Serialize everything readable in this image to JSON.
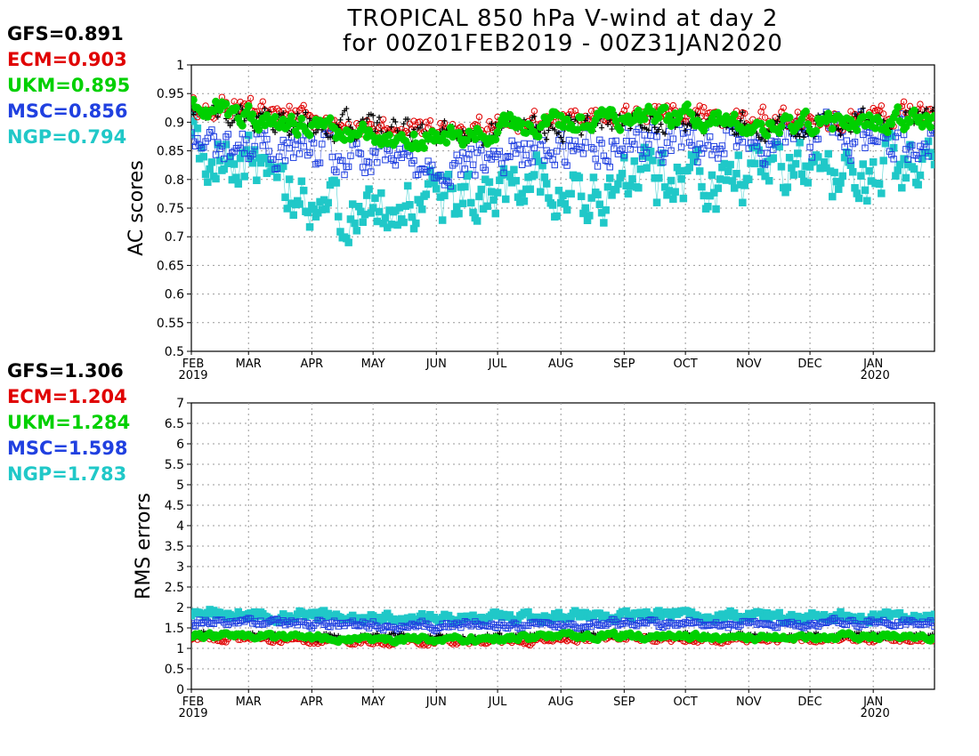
{
  "title": {
    "line1": "TROPICAL 850 hPa V-wind at day 2",
    "line2": "for 00Z01FEB2019 - 00Z31JAN2020"
  },
  "colors": {
    "GFS": "#000000",
    "ECM": "#e00000",
    "UKM": "#00d000",
    "MSC": "#2040e0",
    "NGP": "#20c8c8"
  },
  "ac_stats": [
    {
      "model": "GFS",
      "text": "GFS=0.891"
    },
    {
      "model": "ECM",
      "text": "ECM=0.903"
    },
    {
      "model": "UKM",
      "text": "UKM=0.895"
    },
    {
      "model": "MSC",
      "text": "MSC=0.856"
    },
    {
      "model": "NGP",
      "text": "NGP=0.794"
    }
  ],
  "rms_stats": [
    {
      "model": "GFS",
      "text": "GFS=1.306"
    },
    {
      "model": "ECM",
      "text": "ECM=1.204"
    },
    {
      "model": "UKM",
      "text": "UKM=1.284"
    },
    {
      "model": "MSC",
      "text": "MSC=1.598"
    },
    {
      "model": "NGP",
      "text": "NGP=1.783"
    }
  ],
  "chart_data": [
    {
      "type": "scatter",
      "ylabel": "AC scores",
      "ylim": [
        0.5,
        1.0
      ],
      "yticks": [
        "0.5",
        "0.55",
        "0.6",
        "0.65",
        "0.7",
        "0.75",
        "0.8",
        "0.85",
        "0.9",
        "0.95",
        "1"
      ],
      "xlim": [
        "2019-02-01",
        "2020-01-31"
      ],
      "xticks": [
        {
          "date": "2019-02-01",
          "label": "FEB",
          "sub": "2019"
        },
        {
          "date": "2019-03-01",
          "label": "MAR",
          "sub": ""
        },
        {
          "date": "2019-04-01",
          "label": "APR",
          "sub": ""
        },
        {
          "date": "2019-05-01",
          "label": "MAY",
          "sub": ""
        },
        {
          "date": "2019-06-01",
          "label": "JUN",
          "sub": ""
        },
        {
          "date": "2019-07-01",
          "label": "JUL",
          "sub": ""
        },
        {
          "date": "2019-08-01",
          "label": "AUG",
          "sub": ""
        },
        {
          "date": "2019-09-01",
          "label": "SEP",
          "sub": ""
        },
        {
          "date": "2019-10-01",
          "label": "OCT",
          "sub": ""
        },
        {
          "date": "2019-11-01",
          "label": "NOV",
          "sub": ""
        },
        {
          "date": "2019-12-01",
          "label": "DEC",
          "sub": ""
        },
        {
          "date": "2020-01-01",
          "label": "JAN",
          "sub": "2020"
        }
      ],
      "grid": true,
      "series": [
        {
          "model": "GFS",
          "marker": "plus",
          "monthly_mean": [
            0.91,
            0.905,
            0.89,
            0.88,
            0.88,
            0.89,
            0.9,
            0.905,
            0.9,
            0.895,
            0.9,
            0.905
          ],
          "spread": 0.018
        },
        {
          "model": "ECM",
          "marker": "circle",
          "monthly_mean": [
            0.925,
            0.915,
            0.895,
            0.89,
            0.89,
            0.9,
            0.915,
            0.915,
            0.91,
            0.905,
            0.91,
            0.915
          ],
          "spread": 0.016
        },
        {
          "model": "UKM",
          "marker": "filled-circle",
          "monthly_mean": [
            0.925,
            0.9,
            0.88,
            0.875,
            0.88,
            0.895,
            0.905,
            0.905,
            0.905,
            0.9,
            0.9,
            0.905
          ],
          "spread": 0.015
        },
        {
          "model": "MSC",
          "marker": "square",
          "monthly_mean": [
            0.86,
            0.855,
            0.83,
            0.83,
            0.83,
            0.85,
            0.865,
            0.87,
            0.87,
            0.875,
            0.88,
            0.875
          ],
          "spread": 0.03
        },
        {
          "model": "NGP",
          "marker": "filled-square",
          "monthly_mean": [
            0.85,
            0.79,
            0.74,
            0.75,
            0.77,
            0.8,
            0.79,
            0.79,
            0.8,
            0.82,
            0.8,
            0.82
          ],
          "spread": 0.04
        }
      ]
    },
    {
      "type": "scatter",
      "ylabel": "RMS errors",
      "ylim": [
        0,
        7
      ],
      "yticks": [
        "0",
        "0.5",
        "1",
        "1.5",
        "2",
        "2.5",
        "3",
        "3.5",
        "4",
        "4.5",
        "5",
        "5.5",
        "6",
        "6.5",
        "7"
      ],
      "xlim": [
        "2019-02-01",
        "2020-01-31"
      ],
      "xticks": [
        {
          "date": "2019-02-01",
          "label": "FEB",
          "sub": "2019"
        },
        {
          "date": "2019-03-01",
          "label": "MAR",
          "sub": ""
        },
        {
          "date": "2019-04-01",
          "label": "APR",
          "sub": ""
        },
        {
          "date": "2019-05-01",
          "label": "MAY",
          "sub": ""
        },
        {
          "date": "2019-06-01",
          "label": "JUN",
          "sub": ""
        },
        {
          "date": "2019-07-01",
          "label": "JUL",
          "sub": ""
        },
        {
          "date": "2019-08-01",
          "label": "AUG",
          "sub": ""
        },
        {
          "date": "2019-09-01",
          "label": "SEP",
          "sub": ""
        },
        {
          "date": "2019-10-01",
          "label": "OCT",
          "sub": ""
        },
        {
          "date": "2019-11-01",
          "label": "NOV",
          "sub": ""
        },
        {
          "date": "2019-12-01",
          "label": "DEC",
          "sub": ""
        },
        {
          "date": "2020-01-01",
          "label": "JAN",
          "sub": "2020"
        }
      ],
      "grid": true,
      "series": [
        {
          "model": "GFS",
          "marker": "plus",
          "monthly_mean": [
            1.35,
            1.32,
            1.3,
            1.28,
            1.27,
            1.3,
            1.35,
            1.32,
            1.3,
            1.3,
            1.3,
            1.32
          ],
          "spread": 0.06
        },
        {
          "model": "ECM",
          "marker": "circle",
          "monthly_mean": [
            1.25,
            1.22,
            1.18,
            1.15,
            1.15,
            1.18,
            1.23,
            1.22,
            1.2,
            1.2,
            1.2,
            1.22
          ],
          "spread": 0.06
        },
        {
          "model": "UKM",
          "marker": "filled-circle",
          "monthly_mean": [
            1.3,
            1.28,
            1.25,
            1.23,
            1.23,
            1.27,
            1.32,
            1.3,
            1.28,
            1.27,
            1.28,
            1.3
          ],
          "spread": 0.06
        },
        {
          "model": "MSC",
          "marker": "square",
          "monthly_mean": [
            1.65,
            1.62,
            1.58,
            1.56,
            1.55,
            1.58,
            1.62,
            1.6,
            1.58,
            1.58,
            1.6,
            1.6
          ],
          "spread": 0.08
        },
        {
          "model": "NGP",
          "marker": "filled-square",
          "monthly_mean": [
            1.85,
            1.8,
            1.75,
            1.75,
            1.72,
            1.75,
            1.85,
            1.8,
            1.78,
            1.75,
            1.78,
            1.75
          ],
          "spread": 0.1
        }
      ]
    }
  ]
}
